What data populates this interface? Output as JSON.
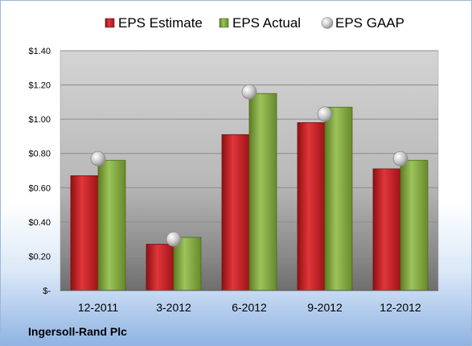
{
  "chart_data": {
    "type": "bar",
    "title": "",
    "xlabel": "",
    "ylabel": "",
    "categories": [
      "12-2011",
      "3-2012",
      "6-2012",
      "9-2012",
      "12-2012"
    ],
    "series": [
      {
        "name": "EPS Estimate",
        "kind": "bar",
        "color": "#c0191e",
        "values": [
          0.67,
          0.27,
          0.91,
          0.98,
          0.71
        ]
      },
      {
        "name": "EPS Actual",
        "kind": "bar",
        "color": "#7aa03a",
        "values": [
          0.76,
          0.31,
          1.15,
          1.07,
          0.76
        ]
      },
      {
        "name": "EPS GAAP",
        "kind": "marker",
        "color": "#bfbfbf",
        "values": [
          0.77,
          0.3,
          1.16,
          1.03,
          0.77
        ]
      }
    ],
    "ylim": [
      0,
      1.4
    ],
    "y_ticks": [
      {
        "value": 0,
        "label": "$-"
      },
      {
        "value": 0.2,
        "label": "$0.20"
      },
      {
        "value": 0.4,
        "label": "$0.40"
      },
      {
        "value": 0.6,
        "label": "$0.60"
      },
      {
        "value": 0.8,
        "label": "$0.80"
      },
      {
        "value": 1.0,
        "label": "$1.00"
      },
      {
        "value": 1.2,
        "label": "$1.20"
      },
      {
        "value": 1.4,
        "label": "$1.40"
      }
    ],
    "grid": true,
    "legend_position": "top"
  },
  "company_label": "Ingersoll-Rand Plc"
}
